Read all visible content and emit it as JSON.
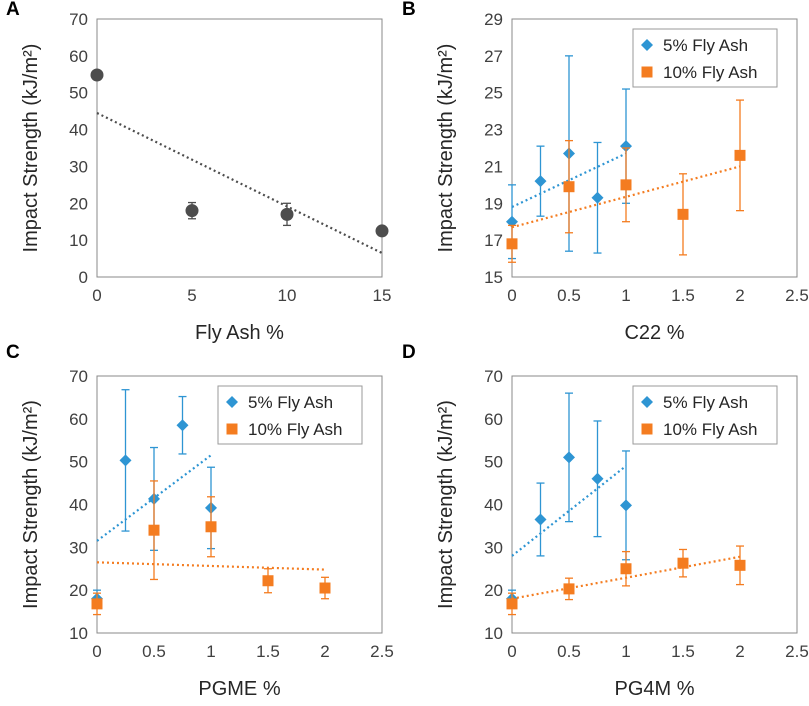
{
  "colors": {
    "series1": "#2e95d3",
    "series2": "#f47c20",
    "plain": "#4d4d4d",
    "frame": "#888888",
    "grid": "#d9d9d9"
  },
  "chart_data": [
    {
      "panel": "A",
      "type": "scatter",
      "xlabel": "Fly Ash %",
      "ylabel": "Impact Strength (kJ/m²)",
      "xlim": [
        0,
        15
      ],
      "ylim": [
        0,
        70
      ],
      "xticks": [
        0,
        5,
        10,
        15
      ],
      "yticks": [
        0,
        10,
        20,
        30,
        40,
        50,
        60,
        70
      ],
      "show_legend": false,
      "series": [
        {
          "name": "Fly Ash",
          "marker": "circle",
          "color": "#4d4d4d",
          "x": [
            0,
            5,
            10,
            15
          ],
          "y": [
            54.8,
            18.0,
            17.0,
            12.5
          ],
          "err": [
            0,
            2.2,
            3.0,
            1.0
          ],
          "trend": [
            [
              0,
              44.5
            ],
            [
              15,
              6.5
            ]
          ]
        }
      ]
    },
    {
      "panel": "B",
      "type": "scatter",
      "xlabel": "C22 %",
      "ylabel": "Impact Strength (kJ/m²)",
      "xlim": [
        0,
        2.5
      ],
      "ylim": [
        15,
        29
      ],
      "xticks": [
        0,
        0.5,
        1,
        1.5,
        2,
        2.5
      ],
      "yticks": [
        15,
        17,
        19,
        21,
        23,
        25,
        27,
        29
      ],
      "show_legend": true,
      "series": [
        {
          "name": "5% Fly Ash",
          "marker": "diamond",
          "color": "#2e95d3",
          "x": [
            0,
            0.25,
            0.5,
            0.75,
            1
          ],
          "y": [
            18.0,
            20.2,
            21.7,
            19.3,
            22.1
          ],
          "err": [
            2.0,
            1.9,
            5.3,
            3.0,
            3.1
          ],
          "trend": [
            [
              0,
              18.8
            ],
            [
              1,
              21.7
            ]
          ]
        },
        {
          "name": "10% Fly Ash",
          "marker": "square",
          "color": "#f47c20",
          "x": [
            0,
            0.5,
            1,
            1.5,
            2
          ],
          "y": [
            16.8,
            19.9,
            20.0,
            18.4,
            21.6
          ],
          "err": [
            1.0,
            2.5,
            2.0,
            2.2,
            3.0
          ],
          "trend": [
            [
              0,
              17.7
            ],
            [
              2,
              21.0
            ]
          ]
        }
      ]
    },
    {
      "panel": "C",
      "type": "scatter",
      "xlabel": "PGME %",
      "ylabel": "Impact Strength (kJ/m²)",
      "xlim": [
        0,
        2.5
      ],
      "ylim": [
        10,
        70
      ],
      "xticks": [
        0,
        0.5,
        1,
        1.5,
        2,
        2.5
      ],
      "yticks": [
        10,
        20,
        30,
        40,
        50,
        60,
        70
      ],
      "show_legend": true,
      "series": [
        {
          "name": "5% Fly Ash",
          "marker": "diamond",
          "color": "#2e95d3",
          "x": [
            0,
            0.25,
            0.5,
            0.75,
            1
          ],
          "y": [
            18.0,
            50.3,
            41.3,
            58.5,
            39.2
          ],
          "err": [
            2.0,
            16.5,
            12.0,
            6.7,
            9.5
          ],
          "trend": [
            [
              0,
              31.5
            ],
            [
              1,
              51.5
            ]
          ]
        },
        {
          "name": "10% Fly Ash",
          "marker": "square",
          "color": "#f47c20",
          "x": [
            0,
            0.5,
            1,
            1.5,
            2
          ],
          "y": [
            16.8,
            34.0,
            34.8,
            22.2,
            20.5
          ],
          "err": [
            2.5,
            11.5,
            7.0,
            2.8,
            2.5
          ],
          "trend": [
            [
              0,
              26.5
            ],
            [
              2,
              24.8
            ]
          ]
        }
      ]
    },
    {
      "panel": "D",
      "type": "scatter",
      "xlabel": "PG4M %",
      "ylabel": "Impact Strength (kJ/m²)",
      "xlim": [
        0,
        2.5
      ],
      "ylim": [
        10,
        70
      ],
      "xticks": [
        0,
        0.5,
        1,
        1.5,
        2,
        2.5
      ],
      "yticks": [
        10,
        20,
        30,
        40,
        50,
        60,
        70
      ],
      "show_legend": true,
      "series": [
        {
          "name": "5% Fly Ash",
          "marker": "diamond",
          "color": "#2e95d3",
          "x": [
            0,
            0.25,
            0.5,
            0.75,
            1
          ],
          "y": [
            18.0,
            36.5,
            51.0,
            46.0,
            39.8
          ],
          "err": [
            2.0,
            8.5,
            15.0,
            13.5,
            12.7
          ],
          "trend": [
            [
              0,
              28.0
            ],
            [
              1,
              49.0
            ]
          ]
        },
        {
          "name": "10% Fly Ash",
          "marker": "square",
          "color": "#f47c20",
          "x": [
            0,
            0.5,
            1,
            1.5,
            2
          ],
          "y": [
            16.8,
            20.3,
            25.0,
            26.3,
            25.8
          ],
          "err": [
            2.5,
            2.5,
            4.0,
            3.2,
            4.5
          ],
          "trend": [
            [
              0,
              18.0
            ],
            [
              2,
              27.8
            ]
          ]
        }
      ]
    }
  ]
}
